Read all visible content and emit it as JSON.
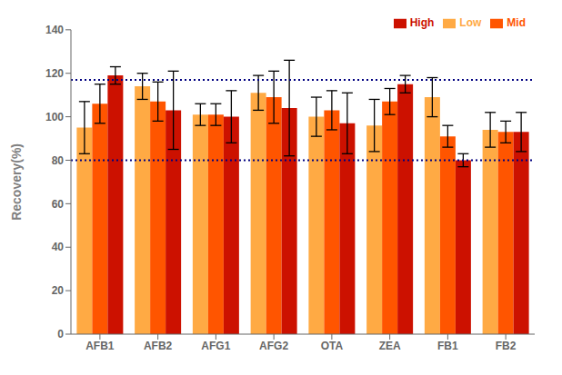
{
  "chart_data": {
    "type": "bar",
    "categories": [
      "AFB1",
      "AFB2",
      "AFG1",
      "AFG2",
      "OTA",
      "ZEA",
      "FB1",
      "FB2"
    ],
    "series": [
      {
        "name": "Low",
        "color": "#FFAA44",
        "values": [
          95,
          114,
          101,
          111,
          100,
          96,
          109,
          94
        ],
        "errors": [
          12,
          6,
          5,
          8,
          9,
          12,
          9,
          8
        ]
      },
      {
        "name": "Mid",
        "color": "#FF5500",
        "values": [
          106,
          107,
          101,
          109,
          103,
          107,
          91,
          93
        ],
        "errors": [
          9,
          9,
          5,
          12,
          9,
          6,
          5,
          5
        ]
      },
      {
        "name": "High",
        "color": "#CC1100",
        "values": [
          119,
          103,
          100,
          104,
          97,
          115,
          80,
          93
        ],
        "errors": [
          4,
          18,
          12,
          22,
          14,
          4,
          3,
          9
        ]
      }
    ],
    "reference_lines": [
      {
        "value": 117,
        "color": "#000080",
        "line_style": "dotted"
      },
      {
        "value": 80,
        "color": "#000080",
        "line_style": "dotted"
      }
    ],
    "ylabel": "Recovery(%)",
    "ylim": [
      0,
      140
    ],
    "yticks": [
      0,
      20,
      40,
      60,
      80,
      100,
      120,
      140
    ],
    "grid": false,
    "legend": "upper right"
  }
}
